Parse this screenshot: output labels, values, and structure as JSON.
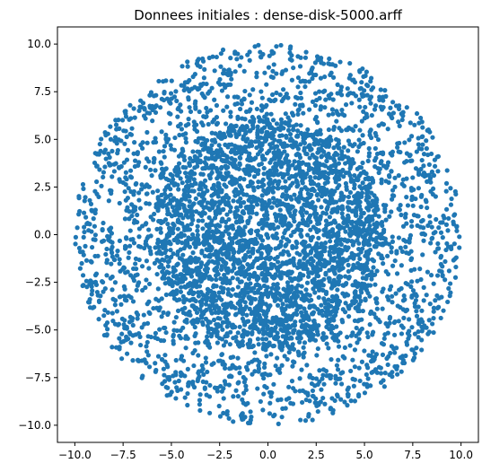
{
  "chart_data": {
    "type": "scatter",
    "title": "Donnees initiales : dense-disk-5000.arff",
    "xlabel": "",
    "ylabel": "",
    "xlim": [
      -10.9,
      10.9
    ],
    "ylim": [
      -10.9,
      10.9
    ],
    "x_ticks": [
      -10.0,
      -7.5,
      -5.0,
      -2.5,
      0.0,
      2.5,
      5.0,
      7.5,
      10.0
    ],
    "y_ticks": [
      -10.0,
      -7.5,
      -5.0,
      -2.5,
      0.0,
      2.5,
      5.0,
      7.5,
      10.0
    ],
    "x_tick_labels": [
      "−10.0",
      "−7.5",
      "−5.0",
      "−2.5",
      "0.0",
      "2.5",
      "5.0",
      "7.5",
      "10.0"
    ],
    "y_tick_labels": [
      "−10.0",
      "−7.5",
      "−5.0",
      "−2.5",
      "0.0",
      "2.5",
      "5.0",
      "7.5",
      "10.0"
    ],
    "grid": false,
    "legend": "none",
    "marker_color": "#1f77b4",
    "series": [
      {
        "description": "dense core: ~3000 points uniformly filling disk of radius ~6 centered at (0,0)",
        "center": [
          0,
          0
        ],
        "radius": 6.0,
        "approx_count": 3000
      },
      {
        "description": "sparse ring: ~1800 points uniformly filling annulus between radius ~6 and ~10",
        "center": [
          0,
          0
        ],
        "inner_radius": 6.0,
        "outer_radius": 10.0,
        "approx_count": 1800
      }
    ]
  }
}
